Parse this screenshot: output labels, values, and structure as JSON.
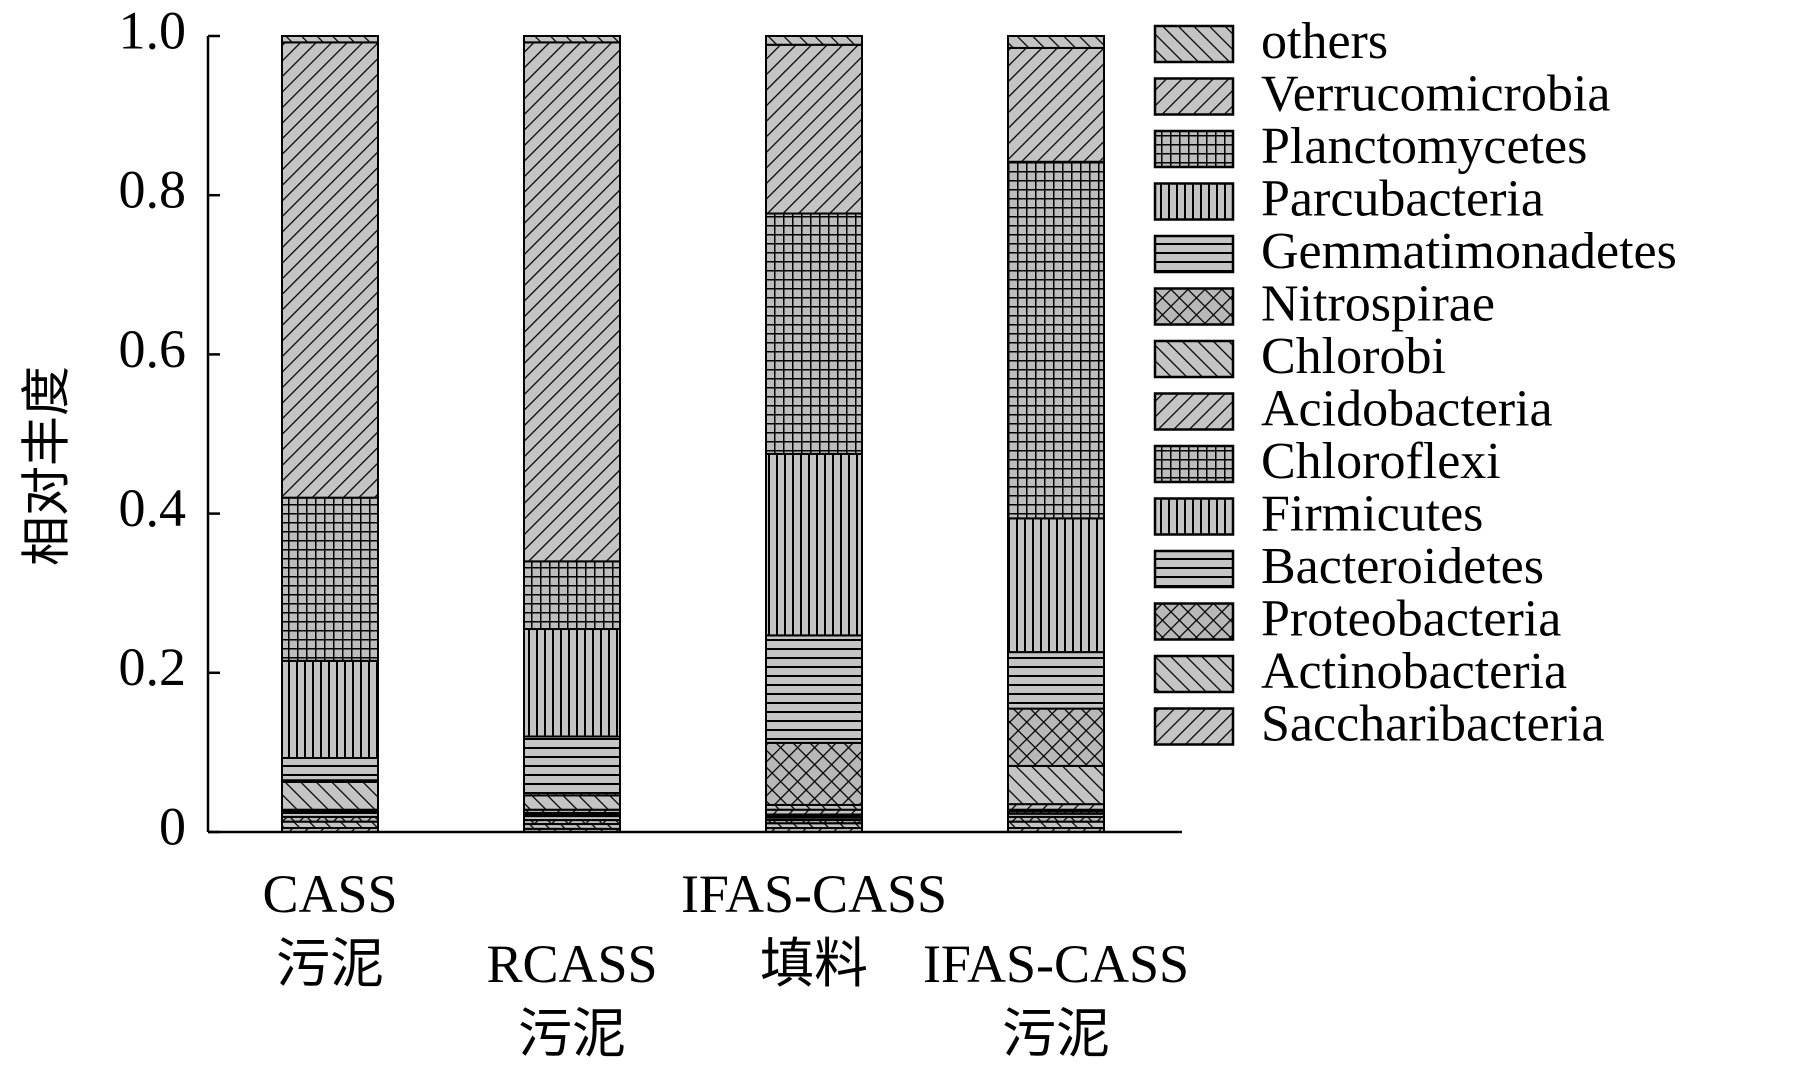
{
  "chart_data": {
    "type": "bar",
    "stacked": true,
    "ylabel": "相对丰度",
    "xlabel": "",
    "title": "",
    "ylim": [
      0,
      1.0
    ],
    "yticks": [
      0,
      0.2,
      0.4,
      0.6,
      0.8,
      1.0
    ],
    "ytick_labels": [
      "0",
      "0.2",
      "0.4",
      "0.6",
      "0.8",
      "1.0"
    ],
    "grid": false,
    "legend_position": "right",
    "categories": [
      "CASS 污泥",
      "RCASS 污泥",
      "IFAS-CASS 填料",
      "IFAS-CASS 污泥"
    ],
    "category_lines": [
      [
        "CASS",
        "污泥"
      ],
      [
        "RCASS",
        "污泥"
      ],
      [
        "IFAS-CASS",
        "填料"
      ],
      [
        "IFAS-CASS",
        "污泥"
      ]
    ],
    "series": [
      {
        "name": "Saccharibacteria",
        "pattern": "diag-up",
        "values": [
          0.005,
          0.004,
          0.005,
          0.005
        ]
      },
      {
        "name": "Actinobacteria",
        "pattern": "diag-down",
        "values": [
          0.008,
          0.006,
          0.006,
          0.008
        ]
      },
      {
        "name": "Proteobacteria",
        "pattern": "crosshatch",
        "values": [
          0.006,
          0.005,
          0.004,
          0.006
        ]
      },
      {
        "name": "Bacteroidetes",
        "pattern": "horizontal",
        "values": [
          0.005,
          0.005,
          0.003,
          0.004
        ]
      },
      {
        "name": "Firmicutes",
        "pattern": "vertical",
        "values": [
          0.002,
          0.002,
          0.002,
          0.003
        ]
      },
      {
        "name": "Chloroflexi",
        "pattern": "grid",
        "values": [
          0.001,
          0.002,
          0.002,
          0.002
        ]
      },
      {
        "name": "Acidobacteria",
        "pattern": "diag-up",
        "values": [
          0.001,
          0.004,
          0.006,
          0.007
        ]
      },
      {
        "name": "Chlorobi",
        "pattern": "diag-down",
        "values": [
          0.035,
          0.018,
          0.006,
          0.048
        ]
      },
      {
        "name": "Nitrospirae",
        "pattern": "crosshatch",
        "values": [
          0.002,
          0.003,
          0.078,
          0.072
        ]
      },
      {
        "name": "Gemmatimonadetes",
        "pattern": "horizontal",
        "values": [
          0.028,
          0.071,
          0.135,
          0.071
        ]
      },
      {
        "name": "Parcubacteria",
        "pattern": "vertical",
        "values": [
          0.122,
          0.135,
          0.228,
          0.168
        ]
      },
      {
        "name": "Planctomycetes",
        "pattern": "grid",
        "values": [
          0.205,
          0.085,
          0.302,
          0.448
        ]
      },
      {
        "name": "Verrucomicrobia",
        "pattern": "diag-up",
        "values": [
          0.572,
          0.652,
          0.212,
          0.143
        ]
      },
      {
        "name": "others",
        "pattern": "diag-down",
        "values": [
          0.008,
          0.008,
          0.011,
          0.015
        ]
      }
    ],
    "legend_order": [
      "others",
      "Verrucomicrobia",
      "Planctomycetes",
      "Parcubacteria",
      "Gemmatimonadetes",
      "Nitrospirae",
      "Chlorobi",
      "Acidobacteria",
      "Chloroflexi",
      "Firmicutes",
      "Bacteroidetes",
      "Proteobacteria",
      "Actinobacteria",
      "Saccharibacteria"
    ],
    "colors": {
      "fill": "#c0c0c0",
      "line": "#000000",
      "background": "#ffffff"
    }
  }
}
